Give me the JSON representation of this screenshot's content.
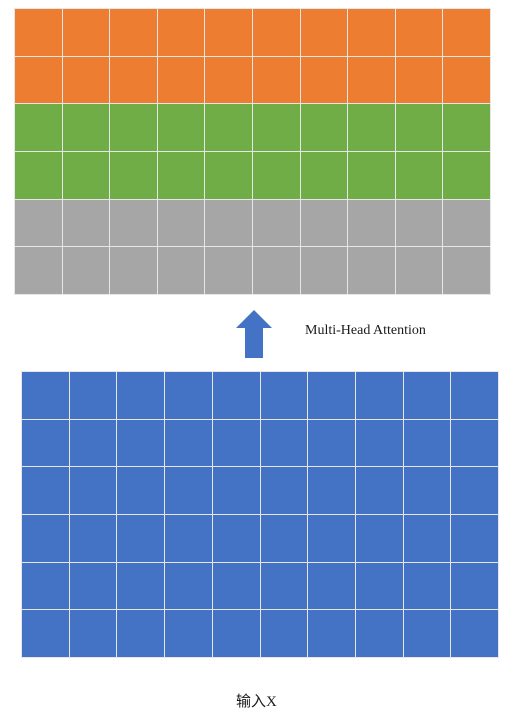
{
  "output": {
    "columns": 10,
    "row_colors": [
      "#ed7d31",
      "#ed7d31",
      "#70ad47",
      "#70ad47",
      "#a6a6a6",
      "#a6a6a6"
    ]
  },
  "input": {
    "columns": 10,
    "rows": 6,
    "color": "#4472c4",
    "label": "输入X"
  },
  "arrow": {
    "color": "#4472c4",
    "icon": "up-arrow-icon",
    "label": "Multi-Head Attention"
  }
}
